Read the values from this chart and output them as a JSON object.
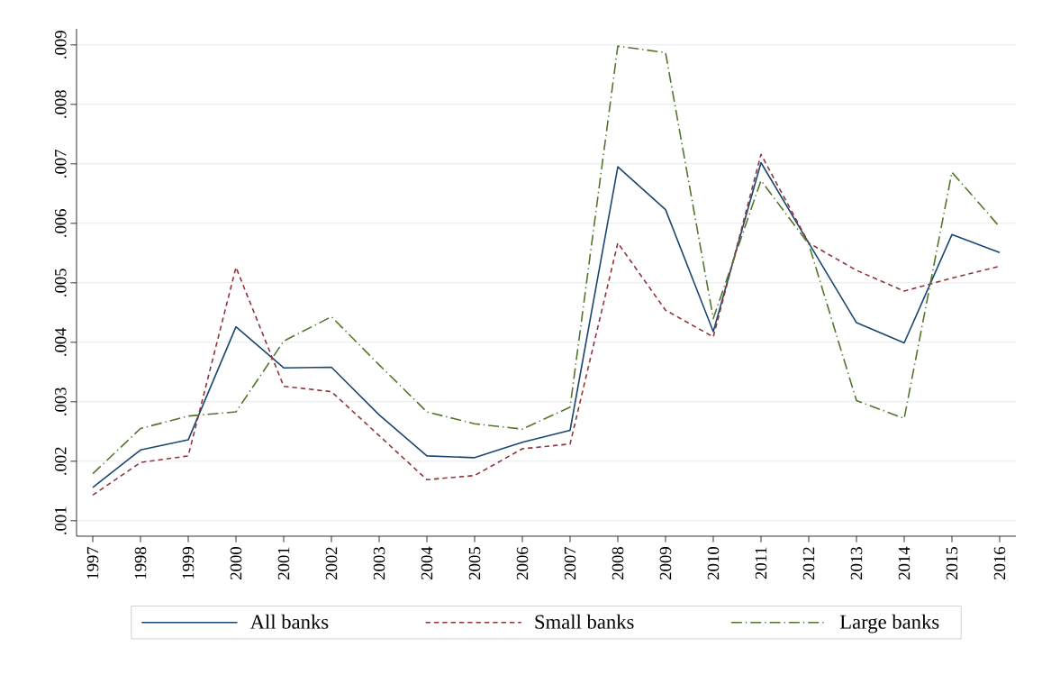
{
  "chart_data": {
    "type": "line",
    "categories": [
      "1997",
      "1998",
      "1999",
      "2000",
      "2001",
      "2002",
      "2003",
      "2004",
      "2005",
      "2006",
      "2007",
      "2008",
      "2009",
      "2010",
      "2011",
      "2012",
      "2013",
      "2014",
      "2015",
      "2016"
    ],
    "series": [
      {
        "name": "All banks",
        "color": "#1a476f",
        "line_style": "solid",
        "values": [
          0.00156,
          0.00219,
          0.00236,
          0.00426,
          0.00357,
          0.00358,
          0.00278,
          0.00209,
          0.00206,
          0.00232,
          0.00252,
          0.00695,
          0.00623,
          0.00418,
          0.00702,
          0.00567,
          0.00433,
          0.00399,
          0.00581,
          0.00551
        ]
      },
      {
        "name": "Small banks",
        "color": "#90353b",
        "line_style": "dashed",
        "values": [
          0.00143,
          0.00198,
          0.00209,
          0.00526,
          0.00326,
          0.00317,
          0.00243,
          0.00169,
          0.00176,
          0.00221,
          0.00229,
          0.00567,
          0.00454,
          0.00409,
          0.00716,
          0.00567,
          0.00521,
          0.00486,
          0.00508,
          0.00528
        ]
      },
      {
        "name": "Large banks",
        "color": "#55752f",
        "line_style": "dashdot",
        "values": [
          0.00179,
          0.00255,
          0.00276,
          0.00283,
          0.00402,
          0.00443,
          0.00362,
          0.00283,
          0.00263,
          0.00254,
          0.00291,
          0.00898,
          0.00887,
          0.0044,
          0.00672,
          0.00565,
          0.00302,
          0.00272,
          0.00686,
          0.00594
        ]
      }
    ],
    "ylim": [
      0.00074,
      0.00927
    ],
    "yticks": [
      {
        "value": 0.001,
        "label": ".001"
      },
      {
        "value": 0.002,
        "label": ".002"
      },
      {
        "value": 0.003,
        "label": ".003"
      },
      {
        "value": 0.004,
        "label": ".004"
      },
      {
        "value": 0.005,
        "label": ".005"
      },
      {
        "value": 0.006,
        "label": ".006"
      },
      {
        "value": 0.007,
        "label": ".007"
      },
      {
        "value": 0.008,
        "label": ".008"
      },
      {
        "value": 0.009,
        "label": ".009"
      }
    ],
    "grid": "y",
    "legend": "bottom",
    "marker": "none"
  }
}
